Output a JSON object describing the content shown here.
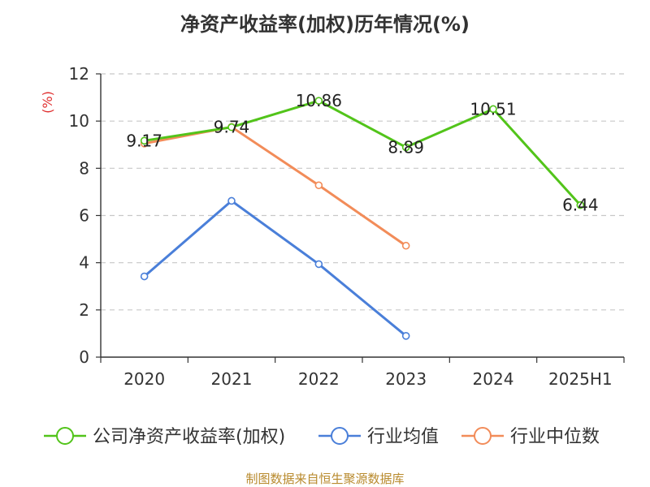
{
  "chart_data": {
    "type": "line",
    "title": "净资产收益率(加权)历年情况(%)",
    "y_unit": "(%)",
    "categories": [
      "2020",
      "2021",
      "2022",
      "2023",
      "2024",
      "2025H1"
    ],
    "ylim": [
      0,
      12
    ],
    "yticks": [
      "0",
      "2",
      "4",
      "6",
      "8",
      "10",
      "12"
    ],
    "grid": true,
    "legend_position": "bottom",
    "series": [
      {
        "name": "公司净资产收益率(加权)",
        "color": "#52c41a",
        "values": [
          9.17,
          9.74,
          10.86,
          8.89,
          10.51,
          6.44
        ],
        "labels": [
          "9.17",
          "9.74",
          "10.86",
          "8.89",
          "10.51",
          "6.44"
        ]
      },
      {
        "name": "行业均值",
        "color": "#4a7fd9",
        "values": [
          3.42,
          6.62,
          3.94,
          0.9,
          null,
          null
        ]
      },
      {
        "name": "行业中位数",
        "color": "#f28c59",
        "values": [
          9.05,
          9.75,
          7.28,
          4.72,
          null,
          null
        ]
      }
    ]
  },
  "footer": {
    "source": "制图数据来自恒生聚源数据库"
  }
}
